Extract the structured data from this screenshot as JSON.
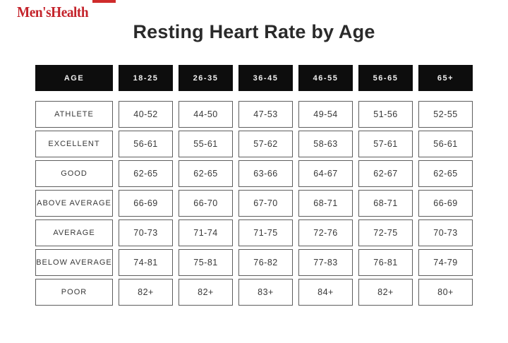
{
  "page": {
    "brand": "Men'sHealth",
    "title": "Resting Heart Rate by Age"
  },
  "colors": {
    "brand_red": "#c4232b",
    "header_bg": "#0d0d0d",
    "header_text": "#efefef",
    "cell_border": "#5e5e5e",
    "text": "#383838"
  },
  "chart_data": {
    "type": "table",
    "title": "Resting Heart Rate by Age",
    "columns": [
      "AGE",
      "18-25",
      "26-35",
      "36-45",
      "46-55",
      "56-65",
      "65+"
    ],
    "rows": [
      {
        "label": "ATHLETE",
        "values": [
          "40-52",
          "44-50",
          "47-53",
          "49-54",
          "51-56",
          "52-55"
        ]
      },
      {
        "label": "EXCELLENT",
        "values": [
          "56-61",
          "55-61",
          "57-62",
          "58-63",
          "57-61",
          "56-61"
        ]
      },
      {
        "label": "GOOD",
        "values": [
          "62-65",
          "62-65",
          "63-66",
          "64-67",
          "62-67",
          "62-65"
        ]
      },
      {
        "label": "ABOVE AVERAGE",
        "values": [
          "66-69",
          "66-70",
          "67-70",
          "68-71",
          "68-71",
          "66-69"
        ]
      },
      {
        "label": "AVERAGE",
        "values": [
          "70-73",
          "71-74",
          "71-75",
          "72-76",
          "72-75",
          "70-73"
        ]
      },
      {
        "label": "BELOW AVERAGE",
        "values": [
          "74-81",
          "75-81",
          "76-82",
          "77-83",
          "76-81",
          "74-79"
        ]
      },
      {
        "label": "POOR",
        "values": [
          "82+",
          "82+",
          "83+",
          "84+",
          "82+",
          "80+"
        ]
      }
    ]
  }
}
